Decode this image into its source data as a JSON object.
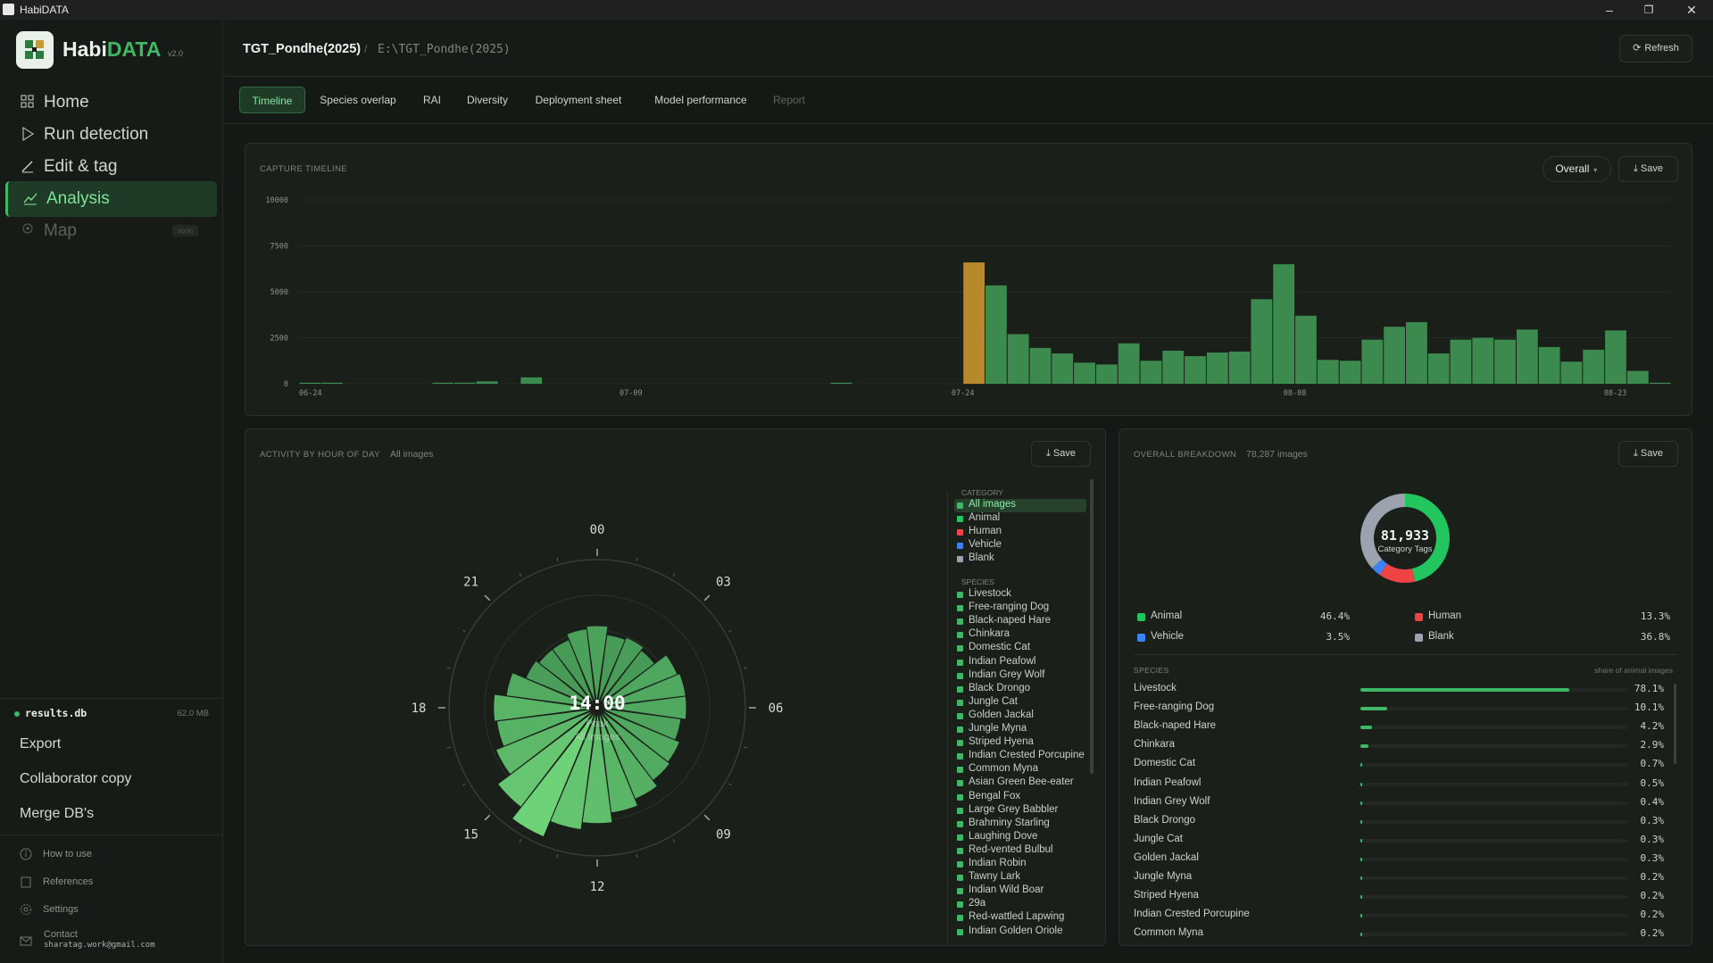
{
  "window": {
    "title": "HabiDATA"
  },
  "brand": {
    "name_a": "Habi",
    "name_b": "DATA",
    "version": "v2.0"
  },
  "nav": [
    {
      "label": "Home",
      "icon": "grid-icon",
      "state": "normal"
    },
    {
      "label": "Run detection",
      "icon": "play-icon",
      "state": "normal"
    },
    {
      "label": "Edit & tag",
      "icon": "pencil-icon",
      "state": "normal"
    },
    {
      "label": "Analysis",
      "icon": "chart-line-icon",
      "state": "active"
    },
    {
      "label": "Map",
      "icon": "map-pin-icon",
      "state": "disabled",
      "badge": "soon"
    }
  ],
  "db": {
    "name": "results.db",
    "size": "62.0 MB"
  },
  "db_actions": [
    "Export",
    "Collaborator copy",
    "Merge DB's"
  ],
  "footer_links": [
    {
      "label": "How to use",
      "icon": "info-icon"
    },
    {
      "label": "References",
      "icon": "book-icon"
    },
    {
      "label": "Settings",
      "icon": "gear-icon"
    }
  ],
  "contact": {
    "label": "Contact",
    "email": "sharatag.work@gmail.com"
  },
  "header": {
    "project": "TGT_Pondhe(2025)",
    "separator": "/",
    "path": "E:\\TGT_Pondhe(2025)",
    "refresh_label": "Refresh"
  },
  "tabs": [
    {
      "label": "Timeline",
      "state": "active"
    },
    {
      "label": "Species overlap",
      "state": "normal"
    },
    {
      "label": "RAI",
      "state": "normal"
    },
    {
      "label": "Diversity",
      "state": "normal"
    },
    {
      "label": "Deployment sheet",
      "state": "normal"
    },
    {
      "label": "Model performance",
      "state": "normal"
    },
    {
      "label": "Report",
      "state": "disabled"
    }
  ],
  "timeline": {
    "title": "CAPTURE TIMELINE",
    "dropdown": "Overall",
    "save_label": "Save",
    "colors": {
      "bar": "#3c8a4e",
      "highlight": "#b8892a"
    },
    "chart_data": {
      "type": "bar",
      "title": "CAPTURE TIMELINE",
      "ylim": [
        0,
        10000
      ],
      "yticks": [
        0,
        2500,
        5000,
        7500,
        10000
      ],
      "xticks": [
        {
          "label": "06-24",
          "day": 0
        },
        {
          "label": "07-09",
          "day": 15
        },
        {
          "label": "07-24",
          "day": 30
        },
        {
          "label": "08-08",
          "day": 45
        },
        {
          "label": "08-23",
          "day": 60
        }
      ],
      "x_start": "06-24",
      "values": [
        40,
        40,
        0,
        0,
        0,
        0,
        20,
        60,
        130,
        0,
        350,
        0,
        0,
        0,
        0,
        0,
        0,
        0,
        0,
        0,
        0,
        0,
        0,
        0,
        10,
        0,
        0,
        0,
        0,
        0,
        6600,
        5350,
        2700,
        1950,
        1650,
        1150,
        1050,
        2200,
        1250,
        1800,
        1500,
        1700,
        1750,
        4600,
        6500,
        3700,
        1300,
        1250,
        2400,
        3100,
        3350,
        1650,
        2400,
        2500,
        2400,
        2950,
        2000,
        1200,
        1850,
        2900,
        700,
        20
      ],
      "highlight_index": 30
    }
  },
  "activity": {
    "title": "ACTIVITY BY HOUR OF DAY",
    "subtitle": "All images",
    "save_label": "Save",
    "center_time": "14:00",
    "center_sub1": "Peak",
    "center_sub2": "All images",
    "hour_labels": [
      {
        "h": 0,
        "label": "00"
      },
      {
        "h": 3,
        "label": "03"
      },
      {
        "h": 6,
        "label": "06"
      },
      {
        "h": 9,
        "label": "09"
      },
      {
        "h": 12,
        "label": "12"
      },
      {
        "h": 15,
        "label": "15"
      },
      {
        "h": 18,
        "label": "18"
      },
      {
        "h": 21,
        "label": "21"
      }
    ],
    "chart_data": {
      "type": "polar-bar",
      "hours": [
        0,
        1,
        2,
        3,
        4,
        5,
        6,
        7,
        8,
        9,
        10,
        11,
        12,
        13,
        14,
        15,
        16,
        17,
        18,
        19,
        20,
        21,
        22,
        23
      ],
      "values": [
        0.52,
        0.45,
        0.47,
        0.44,
        0.56,
        0.58,
        0.58,
        0.54,
        0.58,
        0.6,
        0.66,
        0.72,
        0.8,
        0.86,
        1.0,
        0.88,
        0.75,
        0.68,
        0.7,
        0.6,
        0.48,
        0.45,
        0.45,
        0.5
      ]
    },
    "legend": {
      "category_title": "CATEGORY",
      "categories": [
        {
          "label": "All images",
          "color": "#3fb765",
          "selected": true
        },
        {
          "label": "Animal",
          "color": "#22c55e"
        },
        {
          "label": "Human",
          "color": "#ef4444"
        },
        {
          "label": "Vehicle",
          "color": "#3b82f6"
        },
        {
          "label": "Blank",
          "color": "#9ca3af"
        }
      ],
      "species_title": "SPECIES",
      "species": [
        "Livestock",
        "Free-ranging Dog",
        "Black-naped Hare",
        "Chinkara",
        "Domestic Cat",
        "Indian Peafowl",
        "Indian Grey Wolf",
        "Black Drongo",
        "Jungle Cat",
        "Golden Jackal",
        "Jungle Myna",
        "Striped Hyena",
        "Indian Crested Porcupine",
        "Common Myna",
        "Asian Green Bee-eater",
        "Bengal Fox",
        "Large Grey Babbler",
        "Brahminy Starling",
        "Laughing Dove",
        "Red-vented Bulbul",
        "Indian Robin",
        "Tawny Lark",
        "Indian Wild Boar",
        "29a",
        "Red-wattled Lapwing",
        "Indian Golden Oriole"
      ]
    }
  },
  "breakdown": {
    "title": "OVERALL BREAKDOWN",
    "subtitle": "78,287 images",
    "save_label": "Save",
    "donut_total": "81,933",
    "donut_label": "Category Tags",
    "categories": [
      {
        "label": "Animal",
        "pct": "46.4%",
        "value": 46.4,
        "color": "#22c55e"
      },
      {
        "label": "Human",
        "pct": "13.3%",
        "value": 13.3,
        "color": "#ef4444"
      },
      {
        "label": "Vehicle",
        "pct": "3.5%",
        "value": 3.5,
        "color": "#3b82f6"
      },
      {
        "label": "Blank",
        "pct": "36.8%",
        "value": 36.8,
        "color": "#9ca3af"
      }
    ],
    "species_title": "SPECIES",
    "species_note": "share of animal images",
    "species": [
      {
        "name": "Livestock",
        "pct": "78.1%",
        "value": 78.1
      },
      {
        "name": "Free-ranging Dog",
        "pct": "10.1%",
        "value": 10.1
      },
      {
        "name": "Black-naped Hare",
        "pct": "4.2%",
        "value": 4.2
      },
      {
        "name": "Chinkara",
        "pct": "2.9%",
        "value": 2.9
      },
      {
        "name": "Domestic Cat",
        "pct": "0.7%",
        "value": 0.7
      },
      {
        "name": "Indian Peafowl",
        "pct": "0.5%",
        "value": 0.5
      },
      {
        "name": "Indian Grey Wolf",
        "pct": "0.4%",
        "value": 0.4
      },
      {
        "name": "Black Drongo",
        "pct": "0.3%",
        "value": 0.3
      },
      {
        "name": "Jungle Cat",
        "pct": "0.3%",
        "value": 0.3
      },
      {
        "name": "Golden Jackal",
        "pct": "0.3%",
        "value": 0.3
      },
      {
        "name": "Jungle Myna",
        "pct": "0.2%",
        "value": 0.2
      },
      {
        "name": "Striped Hyena",
        "pct": "0.2%",
        "value": 0.2
      },
      {
        "name": "Indian Crested Porcupine",
        "pct": "0.2%",
        "value": 0.2
      },
      {
        "name": "Common Myna",
        "pct": "0.2%",
        "value": 0.2
      }
    ]
  }
}
